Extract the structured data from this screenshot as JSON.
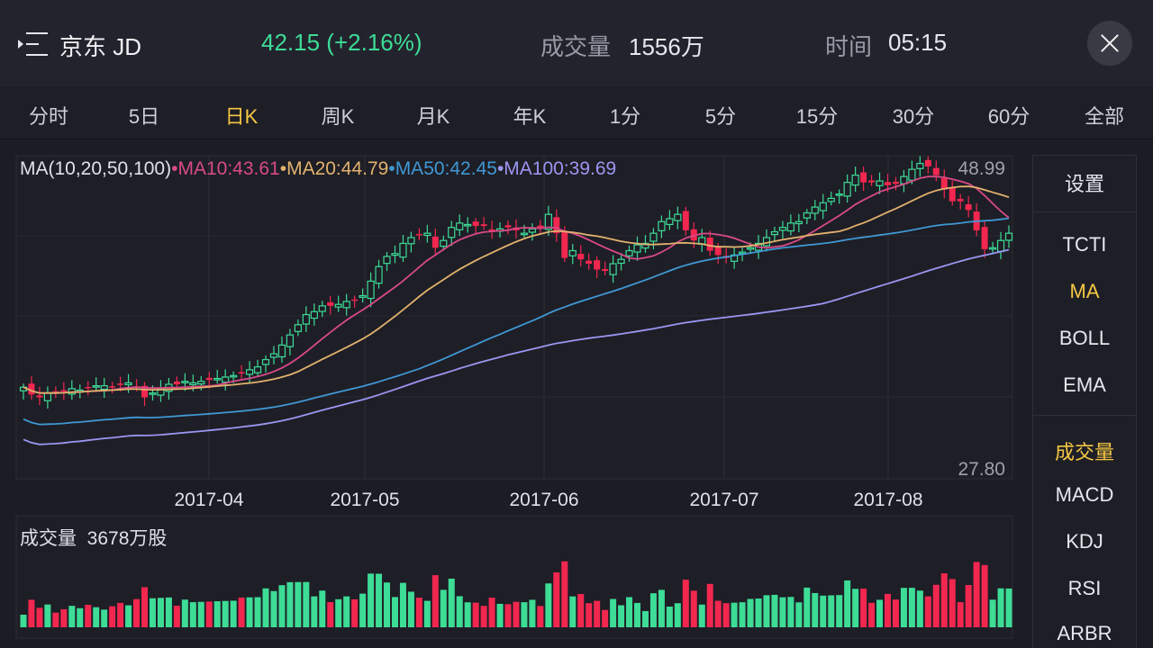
{
  "header": {
    "stock_name": "京东 JD",
    "price_change": "42.15 (+2.16%)",
    "volume_label": "成交量",
    "volume_value": "1556万",
    "time_label": "时间",
    "time_value": "05:15",
    "icons": {
      "menu": "menu-icon",
      "close": "close-icon"
    }
  },
  "tabs": [
    "分时",
    "5日",
    "日K",
    "周K",
    "月K",
    "年K",
    "1分",
    "5分",
    "15分",
    "30分",
    "60分",
    "全部"
  ],
  "active_tab": "日K",
  "indicator_legend": {
    "prefix": "MA(10,20,50,100)",
    "items": [
      {
        "text": "MA10:43.61",
        "color": "#d84a88"
      },
      {
        "text": "MA20:44.79",
        "color": "#e2b26e"
      },
      {
        "text": "MA50:42.45",
        "color": "#3f98d4"
      },
      {
        "text": "MA100:39.69",
        "color": "#9a96f2"
      }
    ]
  },
  "colors": {
    "up": "#3ddc97",
    "down": "#f2274f",
    "active": "#f5c843"
  },
  "side_panel": {
    "settings": "设置",
    "main_indicators": [
      "TCTI",
      "MA",
      "BOLL",
      "EMA"
    ],
    "active_main": "MA",
    "sub_indicators": [
      "成交量",
      "MACD",
      "KDJ",
      "RSI",
      "ARBR"
    ],
    "active_sub": "成交量"
  },
  "volume_panel": {
    "label": "成交量",
    "value": "3678万股"
  },
  "chart_data": {
    "type": "candlestick",
    "y_max_label": "48.99",
    "y_min_label": "27.80",
    "ylim": [
      27.8,
      48.99
    ],
    "x_labels": [
      "2017-04",
      "2017-05",
      "2017-06",
      "2017-07",
      "2017-08"
    ],
    "close": [
      33.3,
      32.8,
      32.6,
      32.9,
      32.9,
      33.0,
      33.2,
      33.1,
      33.3,
      33.4,
      33.4,
      33.3,
      33.5,
      33.6,
      33.3,
      32.6,
      32.9,
      33.2,
      33.5,
      33.5,
      33.7,
      33.6,
      33.7,
      33.8,
      33.9,
      34.0,
      34.1,
      34.3,
      34.5,
      34.7,
      35.2,
      35.6,
      36.2,
      36.9,
      37.6,
      38.3,
      38.5,
      38.9,
      38.9,
      39.0,
      39.2,
      39.3,
      39.6,
      40.6,
      41.6,
      42.3,
      42.5,
      43.2,
      43.6,
      43.8,
      43.9,
      42.9,
      43.4,
      44.3,
      44.6,
      44.5,
      44.4,
      44.4,
      44.1,
      44.2,
      44.3,
      44.1,
      43.9,
      44.2,
      44.3,
      45.2,
      43.9,
      42.2,
      42.7,
      42.1,
      41.8,
      41.4,
      41.3,
      41.8,
      42.1,
      42.7,
      43.1,
      43.2,
      43.9,
      44.7,
      44.9,
      45.2,
      44.1,
      43.4,
      43.6,
      42.7,
      42.4,
      42.2,
      42.4,
      42.6,
      42.9,
      43.2,
      43.6,
      44.0,
      44.3,
      44.6,
      44.7,
      45.3,
      45.7,
      46.0,
      46.3,
      46.6,
      47.4,
      47.9,
      47.4,
      47.4,
      47.5,
      47.2,
      47.3,
      47.8,
      48.3,
      48.7,
      48.5,
      47.9,
      46.9,
      46.1,
      46.1,
      45.5,
      44.1,
      42.8,
      42.9,
      43.4,
      43.9
    ]
  }
}
